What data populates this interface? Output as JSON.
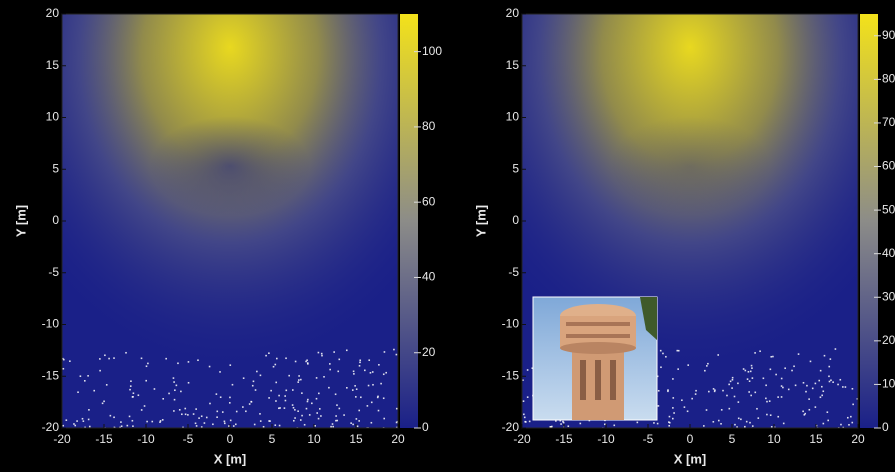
{
  "chart_data": [
    {
      "type": "heatmap",
      "xlabel": "X [m]",
      "ylabel": "Y [m]",
      "xlim": [
        -20,
        20
      ],
      "ylim": [
        -20,
        20
      ],
      "xticks": [
        -20,
        -15,
        -10,
        -5,
        0,
        5,
        10,
        15,
        20
      ],
      "yticks": [
        -20,
        -15,
        -10,
        -5,
        0,
        5,
        10,
        15,
        20
      ],
      "clim": [
        0,
        110
      ],
      "cticks": [
        0,
        20,
        40,
        60,
        80,
        100
      ],
      "colormap": [
        "#1a2088",
        "#8c8c88",
        "#f3e21a"
      ]
    },
    {
      "type": "heatmap",
      "xlabel": "X [m]",
      "ylabel": "Y [m]",
      "xlim": [
        -20,
        20
      ],
      "ylim": [
        -20,
        20
      ],
      "xticks": [
        -20,
        -15,
        -10,
        -5,
        0,
        5,
        10,
        15,
        20
      ],
      "yticks": [
        -20,
        -15,
        -10,
        -5,
        0,
        5,
        10,
        15,
        20
      ],
      "clim": [
        0,
        95
      ],
      "cticks": [
        0,
        10,
        20,
        30,
        40,
        50,
        60,
        70,
        80,
        90
      ],
      "colormap": [
        "#1a2088",
        "#8c8c88",
        "#f3e21a"
      ]
    }
  ]
}
